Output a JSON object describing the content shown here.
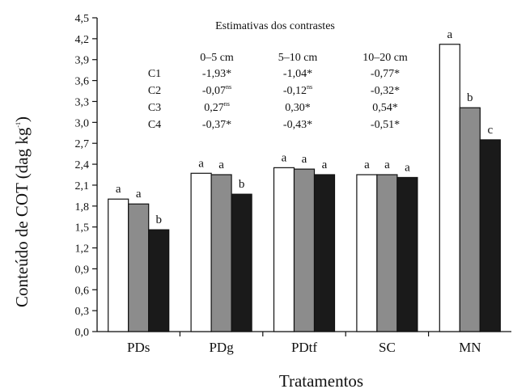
{
  "chart_data": {
    "type": "bar",
    "xlabel": "Tratamentos",
    "ylabel": "Conteúdo de COT (dag kg",
    "ylabel_sup": "-1",
    "ylabel_close": ")",
    "ylim": [
      0,
      4.5
    ],
    "yticks": [
      "0,0",
      "0,3",
      "0,6",
      "0,9",
      "1,2",
      "1,5",
      "1,8",
      "2,1",
      "2,4",
      "2,7",
      "3,0",
      "3,3",
      "3,6",
      "3,9",
      "4,2",
      "4,5"
    ],
    "categories": [
      "PDs",
      "PDg",
      "PDtf",
      "SC",
      "MN"
    ],
    "series": [
      {
        "name": "0–5 cm",
        "color": "#ffffff",
        "values": [
          1.9,
          2.27,
          2.35,
          2.25,
          4.12
        ],
        "letters": [
          "a",
          "a",
          "a",
          "a",
          "a"
        ]
      },
      {
        "name": "5–10 cm",
        "color": "#8c8c8c",
        "values": [
          1.83,
          2.25,
          2.33,
          2.25,
          3.21
        ],
        "letters": [
          "a",
          "a",
          "a",
          "a",
          "b"
        ]
      },
      {
        "name": "10–20 cm",
        "color": "#1a1a1a",
        "values": [
          1.46,
          1.97,
          2.25,
          2.21,
          2.75
        ],
        "letters": [
          "b",
          "b",
          "a",
          "a",
          "c"
        ]
      }
    ],
    "grid": false,
    "legend": "none"
  },
  "contrasts": {
    "title": "Estimativas dos contrastes",
    "headers": [
      "0–5 cm",
      "5–10 cm",
      "10–20 cm"
    ],
    "rows": [
      {
        "label": "C1",
        "cells": [
          {
            "v": "-1,93*",
            "s": ""
          },
          {
            "v": "-1,04*",
            "s": ""
          },
          {
            "v": "-0,77*",
            "s": ""
          }
        ]
      },
      {
        "label": "C2",
        "cells": [
          {
            "v": "-0,07",
            "s": "ns"
          },
          {
            "v": "-0,12",
            "s": "ns"
          },
          {
            "v": "-0,32*",
            "s": ""
          }
        ]
      },
      {
        "label": "C3",
        "cells": [
          {
            "v": "0,27",
            "s": "ns"
          },
          {
            "v": "0,30*",
            "s": ""
          },
          {
            "v": "0,54*",
            "s": ""
          }
        ]
      },
      {
        "label": "C4",
        "cells": [
          {
            "v": "-0,37*",
            "s": ""
          },
          {
            "v": "-0,43*",
            "s": ""
          },
          {
            "v": "-0,51*",
            "s": ""
          }
        ]
      }
    ]
  }
}
